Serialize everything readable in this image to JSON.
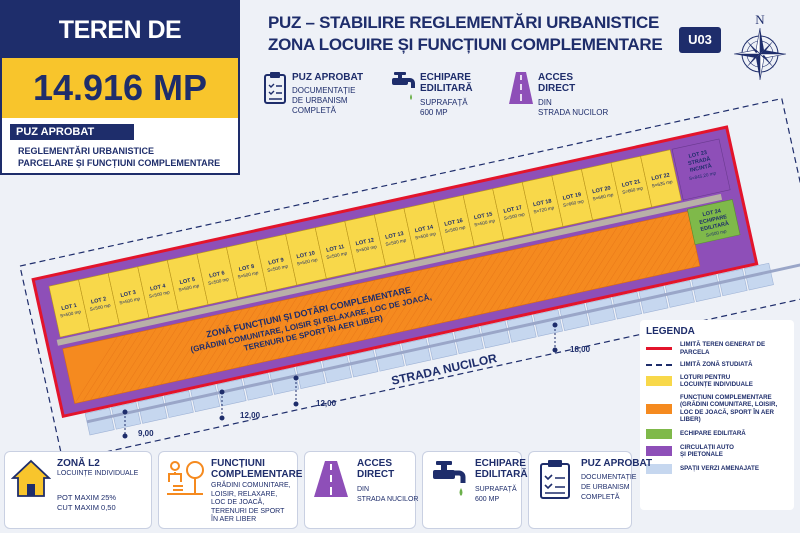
{
  "sale": {
    "title": "TEREN DE VÂNZARE",
    "area": "14.916 MP",
    "badge": "PUZ APROBAT",
    "desc_line1": "REGLEMENTĂRI URBANISTICE",
    "desc_line2": "PARCELARE ȘI FUNCȚIUNI COMPLEMENTARE"
  },
  "header": {
    "title_line1": "PUZ – STABILIRE REGLEMENTĂRI URBANISTICE",
    "title_line2": "ZONA LOCUIRE ȘI FUNCȚIUNI COMPLEMENTARE",
    "code": "U03",
    "compass_letter": "N"
  },
  "top_info": [
    {
      "icon": "clipboard-checklist-icon",
      "title": "PUZ APROBAT",
      "desc_line1": "DOCUMENTAȚIE",
      "desc_line2": "DE URBANISM",
      "desc_line3": "COMPLETĂ"
    },
    {
      "icon": "water-faucet-icon",
      "title_line1": "ECHIPARE",
      "title_line2": "EDILITARĂ",
      "desc_line1": "SUPRAFAȚĂ",
      "desc_line2": "600 MP"
    },
    {
      "icon": "road-icon",
      "title_line1": "ACCES",
      "title_line2": "DIRECT",
      "desc_line1": "DIN",
      "desc_line2": "STRADA NUCILOR"
    }
  ],
  "lots": [
    {
      "name": "LOT 1",
      "area": "S=500 mp"
    },
    {
      "name": "LOT 2",
      "area": "S=500 mp"
    },
    {
      "name": "LOT 3",
      "area": "S=500 mp"
    },
    {
      "name": "LOT 4",
      "area": "S=500 mp"
    },
    {
      "name": "LOT 5",
      "area": "S=500 mp"
    },
    {
      "name": "LOT 6",
      "area": "S=500 mp"
    },
    {
      "name": "LOT 8",
      "area": "S=500 mp"
    },
    {
      "name": "LOT 9",
      "area": "S=500 mp"
    },
    {
      "name": "LOT 10",
      "area": "S=500 mp"
    },
    {
      "name": "LOT 11",
      "area": "S=500 mp"
    },
    {
      "name": "LOT 12",
      "area": "S=500 mp"
    },
    {
      "name": "LOT 13",
      "area": "S=500 mp"
    },
    {
      "name": "LOT 14",
      "area": "S=500 mp"
    },
    {
      "name": "LOT 16",
      "area": "S=500 mp"
    },
    {
      "name": "LOT 15",
      "area": "S=500 mp"
    },
    {
      "name": "LOT 17",
      "area": "S=500 mp"
    },
    {
      "name": "LOT 18",
      "area": "S=720 mp"
    },
    {
      "name": "LOT 19",
      "area": "S=660 mp"
    },
    {
      "name": "LOT 20",
      "area": "S=660 mp"
    },
    {
      "name": "LOT 21",
      "area": "S=660 mp"
    },
    {
      "name": "LOT 22",
      "area": "S=635 mp"
    }
  ],
  "lot23": {
    "name": "LOT 23",
    "line2": "STRADĂ",
    "line3": "INCINTĂ",
    "area": "S=845,20 mp"
  },
  "lot24": {
    "name": "LOT 24",
    "line2": "ECHIPARE",
    "line3": "EDILITARĂ",
    "area": "S=600 mp"
  },
  "zone": {
    "line1": "ZONĂ FUNCȚIUNI ȘI DOTĂRI COMPLEMENTARE",
    "line2": "(GRĂDINI COMUNITARE, LOISIR ȘI RELAXARE, LOC DE JOACĂ,",
    "line3": "TERENURI DE SPORT ÎN AER LIBER)"
  },
  "street_name": "STRADA NUCILOR",
  "dimensions": {
    "d1": "18,00",
    "d2": "12,00",
    "d3": "12,00",
    "d4": "9,00"
  },
  "legend": {
    "title": "LEGENDA",
    "items": [
      {
        "line1": "LIMITĂ TEREN GENERAT DE",
        "line2": "PARCELA",
        "color": "#e3142b",
        "kind": "red-line"
      },
      {
        "line1": "LIMITĂ ZONĂ STUDIATĂ",
        "line2": "",
        "color": "#1e2d6b",
        "kind": "dashed-line"
      },
      {
        "line1": "LOTURI PENTRU",
        "line2": "LOCUINȚE INDIVIDUALE",
        "color": "#f8d84a",
        "kind": "fill"
      },
      {
        "line1": "FUNCȚIUNI COMPLEMENTARE",
        "line2": "(GRĂDINI COMUNITARE, LOISIR,",
        "line3": "LOC DE JOACĂ, SPORT ÎN AER LIBER)",
        "color": "#f58a1f",
        "kind": "fill"
      },
      {
        "line1": "ECHIPARE EDILITARĂ",
        "line2": "",
        "color": "#7fb94a",
        "kind": "fill"
      },
      {
        "line1": "CIRCULAȚII AUTO",
        "line2": "ȘI PIETONALE",
        "color": "#8e4fb8",
        "kind": "fill"
      },
      {
        "line1": "SPAȚII VERZI AMENAJATE",
        "line2": "",
        "color": "#c6d7ef",
        "kind": "fill"
      }
    ]
  },
  "cards": [
    {
      "icon": "house-icon",
      "title": "ZONĂ L2",
      "d1": "LOCUINȚE INDIVIDUALE",
      "d2": "POT MAXIM 25%",
      "d3": "CUT MAXIM 0,50"
    },
    {
      "icon": "playground-icon",
      "title1": "FUNCȚIUNI",
      "title2": "COMPLEMENTARE",
      "d1": "GRĂDINI COMUNITARE,",
      "d2": "LOISIR, RELAXARE,",
      "d3": "LOC DE JOACĂ,",
      "d4": "TERENURI DE SPORT",
      "d5": "ÎN AER LIBER"
    },
    {
      "icon": "road-icon",
      "title1": "ACCES",
      "title2": "DIRECT",
      "d1": "DIN",
      "d2": "STRADA NUCILOR"
    },
    {
      "icon": "water-faucet-icon",
      "title1": "ECHIPARE",
      "title2": "EDILITARĂ",
      "d1": "SUPRAFAȚĂ",
      "d2": "600 MP"
    },
    {
      "icon": "clipboard-checklist-icon",
      "title": "PUZ APROBAT",
      "d1": "DOCUMENTAȚIE",
      "d2": "DE URBANISM",
      "d3": "COMPLETĂ"
    }
  ],
  "colors": {
    "navy": "#1e2d6b",
    "yellow": "#f8c52c",
    "lot_yellow": "#f8d84a",
    "orange": "#f58a1f",
    "green": "#7fb94a",
    "purple": "#8e4fb8",
    "green_space": "#c6d7ef",
    "red": "#e3142b"
  }
}
